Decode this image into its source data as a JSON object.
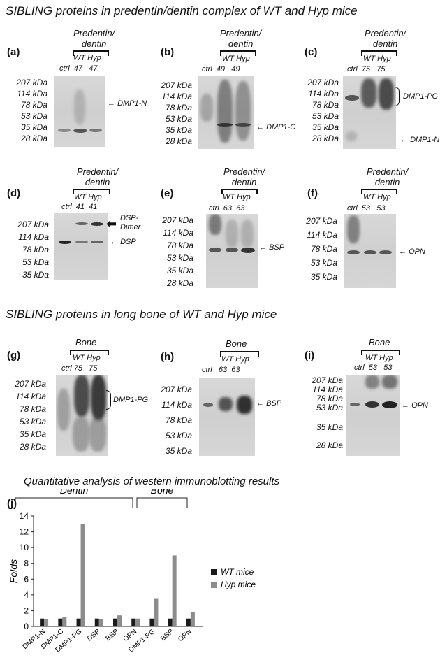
{
  "section_titles": {
    "predentin": "SIBLING proteins in predentin/dentin complex of WT and Hyp mice",
    "bone": "SIBLING proteins in long bone of WT and Hyp mice"
  },
  "common": {
    "predentin_header_line1": "Predentin/",
    "predentin_header_line2": "dentin",
    "bone_header": "Bone",
    "ctrl": "ctrl",
    "wt": "WT",
    "hyp": "Hyp"
  },
  "panels": {
    "a": {
      "letter": "(a)",
      "lane_num": "47",
      "ladder": [
        "207 kDa",
        "114 kDa",
        "78 kDa",
        "53 kDa",
        "35 kDa",
        "28 kDa"
      ],
      "labels": [
        "DMP1-N"
      ]
    },
    "b": {
      "letter": "(b)",
      "lane_num": "49",
      "ladder": [
        "207 kDa",
        "114 kDa",
        "78 kDa",
        "53 kDa",
        "35 kDa",
        "28 kDa"
      ],
      "labels": [
        "DMP1-C"
      ]
    },
    "c": {
      "letter": "(c)",
      "lane_num": "75",
      "ladder": [
        "207 kDa",
        "114 kDa",
        "78 kDa",
        "53 kDa",
        "35 kDa",
        "28 kDa"
      ],
      "labels": [
        "DMP1-PG",
        "DMP1-N"
      ]
    },
    "d": {
      "letter": "(d)",
      "lane_num": "41",
      "ladder": [
        "207 kDa",
        "114 kDa",
        "78 kDa",
        "53 kDa",
        "35 kDa"
      ],
      "labels": [
        "DSP-",
        "Dimer",
        "DSP"
      ]
    },
    "e": {
      "letter": "(e)",
      "lane_num": "63",
      "ladder": [
        "207 kDa",
        "114 kDa",
        "78 kDa",
        "53 kDa",
        "35 kDa",
        "28 kDa"
      ],
      "labels": [
        "BSP"
      ]
    },
    "f": {
      "letter": "(f)",
      "lane_num": "53",
      "ladder": [
        "207 kDa",
        "114 kDa",
        "78 kDa",
        "53 kDa",
        "35 kDa"
      ],
      "labels": [
        "OPN"
      ]
    },
    "g": {
      "letter": "(g)",
      "lane_num": "75",
      "ladder": [
        "207 kDa",
        "114 kDa",
        "78 kDa",
        "53 kDa",
        "35 kDa",
        "28 kDa"
      ],
      "labels": [
        "DMP1-PG"
      ]
    },
    "h": {
      "letter": "(h)",
      "lane_num": "63",
      "ladder": [
        "207 kDa",
        "114 kDa",
        "78 kDa",
        "53 kDa",
        "35 kDa"
      ],
      "labels": [
        "BSP"
      ]
    },
    "i": {
      "letter": "(i)",
      "lane_num": "53",
      "ladder": [
        "207 kDa",
        "114 kDa",
        "78 kDa",
        "53 kDa",
        "35 kDa",
        "28 kDa"
      ],
      "labels": [
        "OPN"
      ]
    }
  },
  "chart_data": {
    "type": "bar",
    "panel_letter": "(j)",
    "title": "Quantitative analysis of  western immunoblotting results",
    "ylabel": "Folds",
    "xlabel": "",
    "ylim": [
      0,
      14
    ],
    "yticks": [
      0,
      2,
      4,
      6,
      8,
      10,
      12,
      14
    ],
    "categories": [
      "DMP1-N",
      "DMP1-C",
      "DMP1-PG",
      "DSP",
      "BSP",
      "OPN",
      "DMP1-PG",
      "BSP",
      "OPN"
    ],
    "groups": [
      {
        "label": "Dentin",
        "categories": [
          "DMP1-N",
          "DMP1-C",
          "DMP1-PG",
          "DSP",
          "BSP",
          "OPN"
        ]
      },
      {
        "label": "Bone",
        "categories": [
          "DMP1-PG",
          "BSP",
          "OPN"
        ]
      }
    ],
    "series": [
      {
        "name": "WT mice",
        "color": "#1a1a1a",
        "values": [
          1,
          1,
          1,
          1,
          1,
          1,
          1,
          1,
          1
        ]
      },
      {
        "name": "Hyp mice",
        "color": "#8c8c8c",
        "values": [
          0.9,
          1.2,
          13,
          0.9,
          1.4,
          1.0,
          3.5,
          9,
          1.8
        ]
      }
    ],
    "legend_position": "right",
    "grid": false
  }
}
